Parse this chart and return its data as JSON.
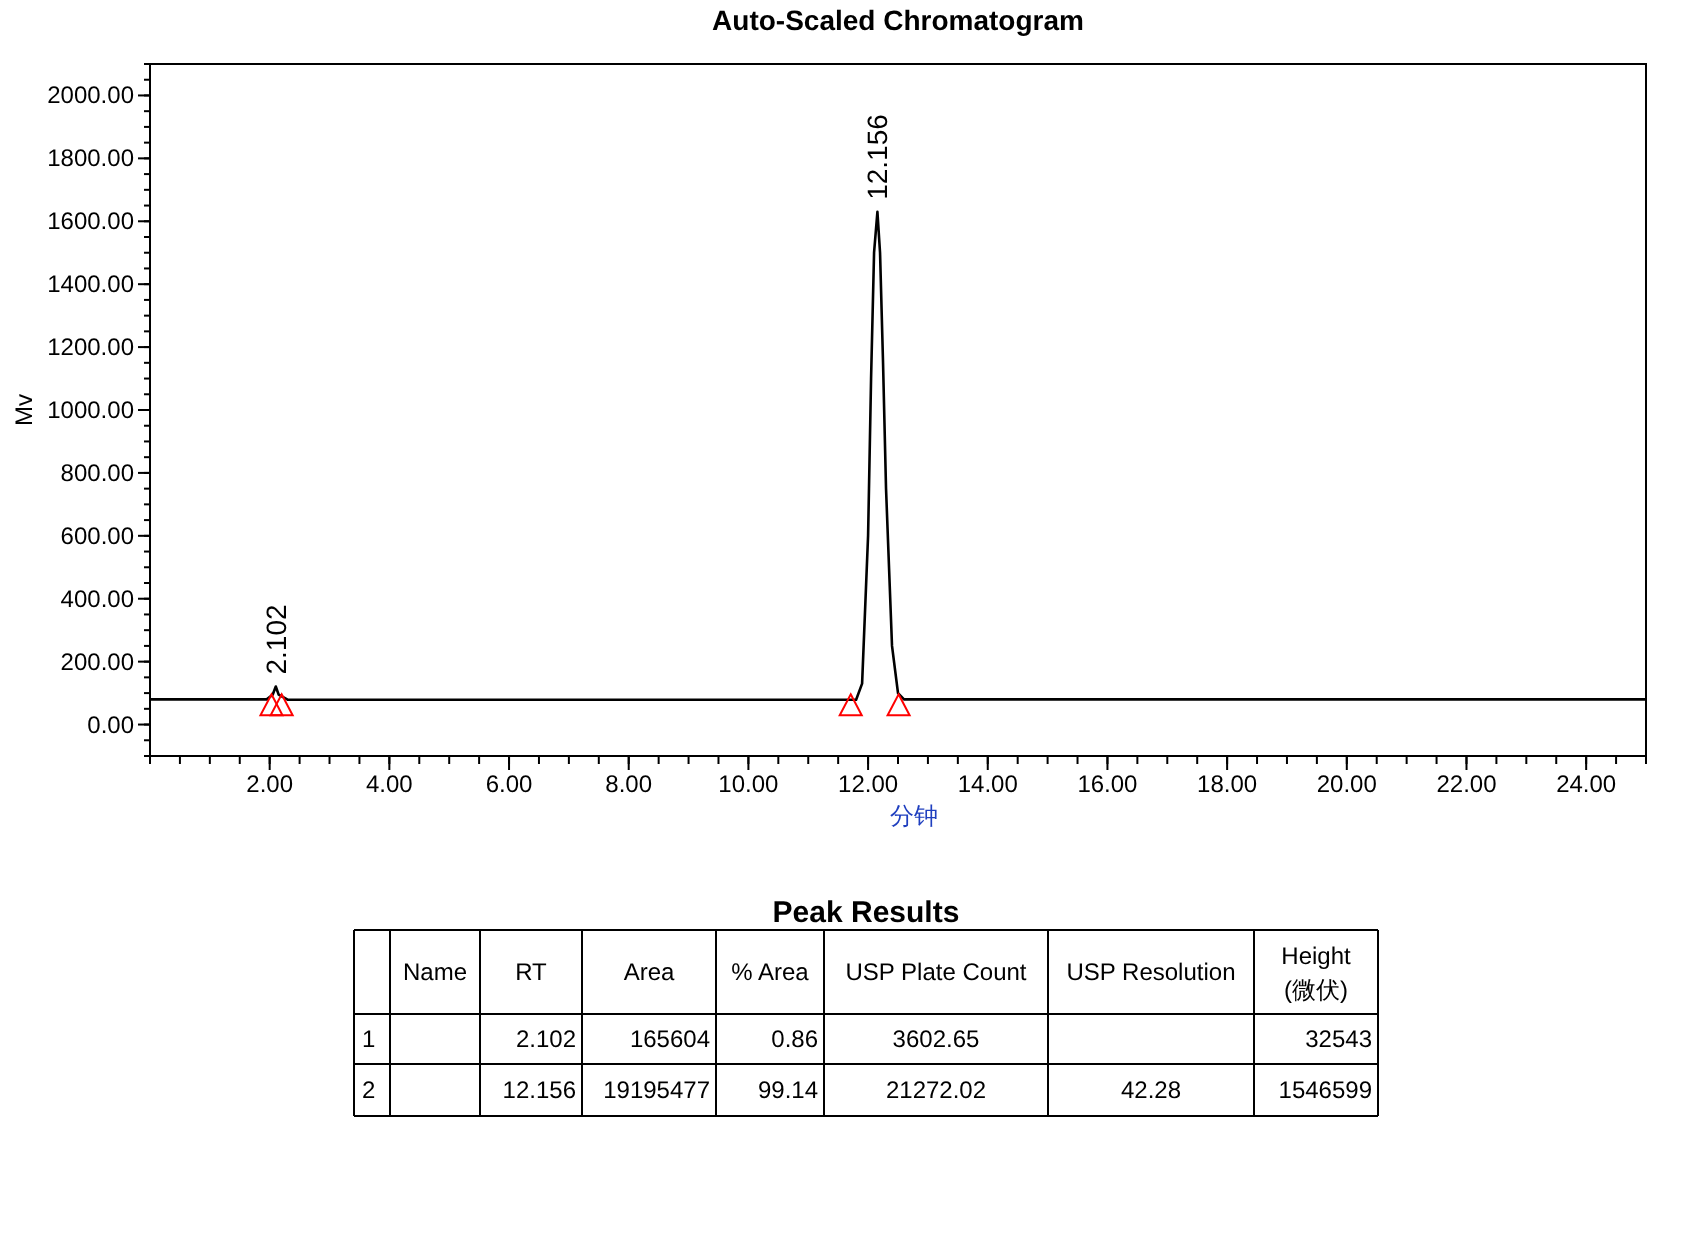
{
  "chart_data": [
    {
      "type": "line",
      "title": "Auto-Scaled Chromatogram",
      "xlabel": "分钟",
      "ylabel": "Mv",
      "xlim": [
        0,
        25
      ],
      "ylim": [
        -100,
        2100
      ],
      "xticks": [
        {
          "value": 2,
          "label": "2.00"
        },
        {
          "value": 4,
          "label": "4.00"
        },
        {
          "value": 6,
          "label": "6.00"
        },
        {
          "value": 8,
          "label": "8.00"
        },
        {
          "value": 10,
          "label": "10.00"
        },
        {
          "value": 12,
          "label": "12.00"
        },
        {
          "value": 14,
          "label": "14.00"
        },
        {
          "value": 16,
          "label": "16.00"
        },
        {
          "value": 18,
          "label": "18.00"
        },
        {
          "value": 20,
          "label": "20.00"
        },
        {
          "value": 22,
          "label": "22.00"
        },
        {
          "value": 24,
          "label": "24.00"
        }
      ],
      "yticks": [
        {
          "value": 0,
          "label": "0.00"
        },
        {
          "value": 200,
          "label": "200.00"
        },
        {
          "value": 400,
          "label": "400.00"
        },
        {
          "value": 600,
          "label": "600.00"
        },
        {
          "value": 800,
          "label": "800.00"
        },
        {
          "value": 1000,
          "label": "1000.00"
        },
        {
          "value": 1200,
          "label": "1200.00"
        },
        {
          "value": 1400,
          "label": "1400.00"
        },
        {
          "value": 1600,
          "label": "1600.00"
        },
        {
          "value": 1800,
          "label": "1800.00"
        },
        {
          "value": 2000,
          "label": "2000.00"
        }
      ],
      "series": [
        {
          "type": "line",
          "color": "#000000",
          "x": [
            0,
            1.5,
            1.95,
            2.05,
            2.102,
            2.15,
            2.3,
            5,
            11.8,
            11.9,
            12.0,
            12.05,
            12.1,
            12.156,
            12.2,
            12.25,
            12.3,
            12.4,
            12.5,
            12.6,
            25
          ],
          "values": [
            80,
            80,
            80,
            95,
            121,
            95,
            79,
            79,
            79,
            130,
            600,
            1100,
            1500,
            1630,
            1500,
            1150,
            750,
            250,
            100,
            80,
            80
          ]
        },
        {
          "type": "scatter",
          "marker": "triangle",
          "color": "#ff0000",
          "x": [
            2.03,
            2.2,
            11.71,
            12.51
          ],
          "values": [
            58,
            58,
            58,
            58
          ]
        }
      ],
      "annotations": [
        {
          "text": "2.102",
          "x": 2.102,
          "y": 121
        },
        {
          "text": "12.156",
          "x": 12.156,
          "y": 1630
        }
      ]
    },
    {
      "type": "other",
      "title": "Peak Results",
      "categories": [
        null,
        "Name",
        "RT",
        "Area",
        "% Area",
        "USP Plate Count",
        "USP Resolution",
        "Height\n(微伏)"
      ],
      "y_categories": [
        "1",
        "2"
      ],
      "cell_labels": [
        [
          null,
          "2.102",
          "165604",
          "0.86",
          "3602.65",
          null,
          "32543"
        ],
        [
          null,
          "12.156",
          "19195477",
          "99.14",
          "21272.02",
          "42.28",
          "1546599"
        ]
      ]
    }
  ]
}
